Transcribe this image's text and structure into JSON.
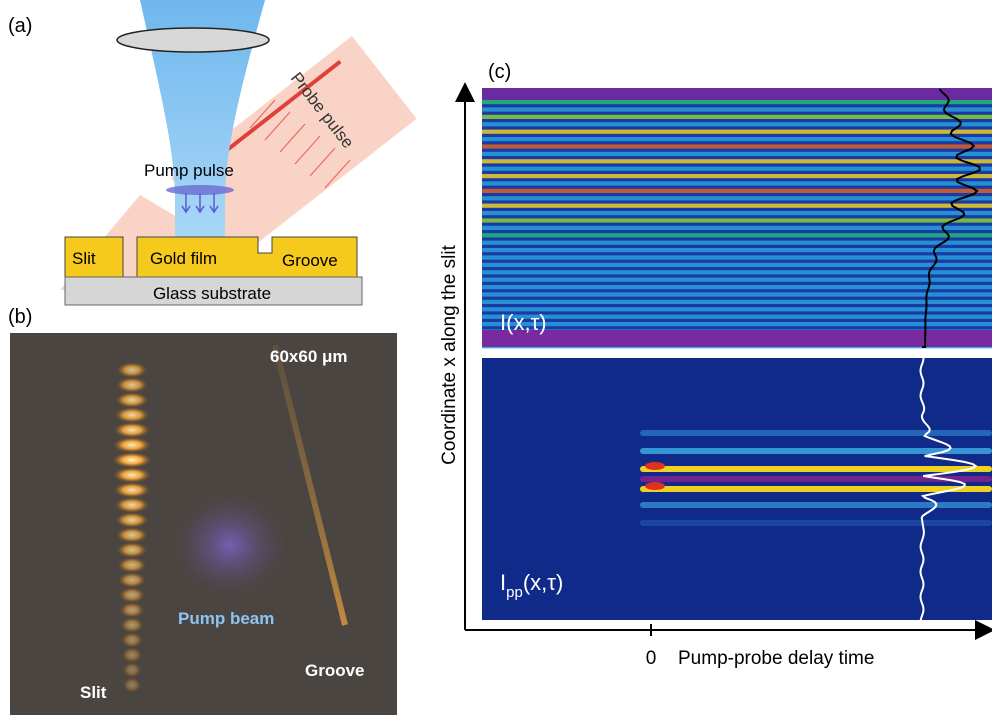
{
  "panel_a": {
    "label": "(a)",
    "probe": "Probe pulse",
    "pump": "Pump pulse",
    "slit": "Slit",
    "gold": "Gold film",
    "groove": "Groove",
    "glass": "Glass substrate"
  },
  "panel_b": {
    "label": "(b)",
    "scale": "60x60 μm",
    "pump_beam": "Pump beam",
    "groove": "Groove",
    "slit": "Slit"
  },
  "panel_c": {
    "label": "(c)",
    "y_axis": "Coordinate x along the slit",
    "x_zero": "0",
    "x_axis": "Pump-probe delay time",
    "top_main": "I",
    "top_args": "(x,τ)",
    "bottom_main": "I",
    "bottom_sub": "pp",
    "bottom_args": "(x,τ)"
  }
}
